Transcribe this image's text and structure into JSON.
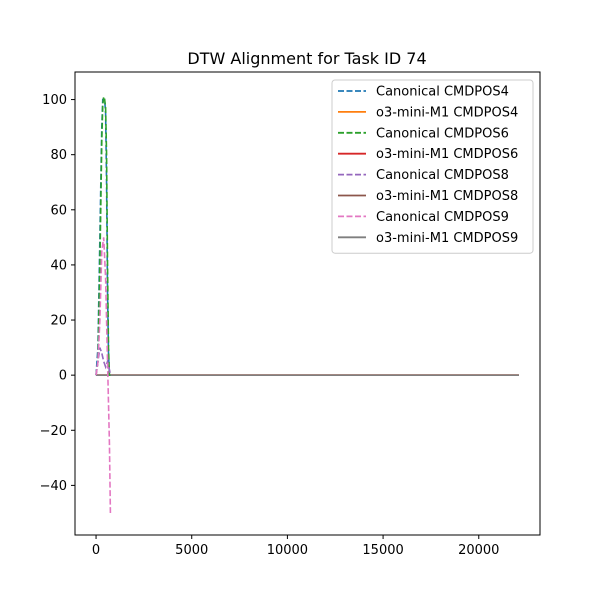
{
  "chart_data": {
    "type": "line",
    "title": "DTW Alignment for Task ID 74",
    "xlabel": "",
    "ylabel": "",
    "xlim": [
      -1100,
      23200
    ],
    "ylim": [
      -58,
      110
    ],
    "xticks": [
      0,
      5000,
      10000,
      15000,
      20000
    ],
    "xtick_labels": [
      "0",
      "5000",
      "10000",
      "15000",
      "20000"
    ],
    "yticks": [
      -40,
      -20,
      0,
      20,
      40,
      60,
      80,
      100
    ],
    "ytick_labels": [
      "−40",
      "−20",
      "0",
      "20",
      "40",
      "60",
      "80",
      "100"
    ],
    "grid": false,
    "legend_position": "top-right",
    "series": [
      {
        "name": "Canonical CMDPOS4",
        "color": "#1f77b4",
        "dash": true,
        "x": [
          0,
          100,
          200,
          300,
          350,
          400,
          450,
          500,
          550,
          600,
          650,
          700,
          750
        ],
        "y": [
          0,
          10,
          50,
          90,
          100,
          100,
          100,
          95,
          70,
          30,
          8,
          0,
          0
        ]
      },
      {
        "name": "o3-mini-M1 CMDPOS4",
        "color": "#ff7f0e",
        "dash": false,
        "x": [
          0,
          22100
        ],
        "y": [
          0,
          0
        ]
      },
      {
        "name": "Canonical CMDPOS6",
        "color": "#2ca02c",
        "dash": true,
        "x": [
          0,
          100,
          200,
          300,
          350,
          400,
          450,
          500,
          550,
          600,
          650,
          700,
          750
        ],
        "y": [
          0,
          5,
          40,
          85,
          98,
          101,
          100,
          97,
          80,
          40,
          10,
          0,
          0
        ]
      },
      {
        "name": "o3-mini-M1 CMDPOS6",
        "color": "#d62728",
        "dash": false,
        "x": [
          0,
          22100
        ],
        "y": [
          0,
          0
        ]
      },
      {
        "name": "Canonical CMDPOS8",
        "color": "#9467bd",
        "dash": true,
        "x": [
          0,
          100,
          200,
          300,
          400,
          500,
          600,
          700,
          750
        ],
        "y": [
          0,
          5,
          10,
          8,
          5,
          3,
          5,
          2,
          0
        ]
      },
      {
        "name": "o3-mini-M1 CMDPOS8",
        "color": "#8c564b",
        "dash": false,
        "x": [
          0,
          22100
        ],
        "y": [
          0,
          0
        ]
      },
      {
        "name": "Canonical CMDPOS9",
        "color": "#e377c2",
        "dash": true,
        "x": [
          0,
          100,
          200,
          300,
          400,
          500,
          600,
          700,
          750
        ],
        "y": [
          0,
          5,
          20,
          45,
          50,
          35,
          5,
          -25,
          -50
        ]
      },
      {
        "name": "o3-mini-M1 CMDPOS9",
        "color": "#7f7f7f",
        "dash": false,
        "x": [
          0,
          22100
        ],
        "y": [
          0,
          0
        ]
      }
    ]
  }
}
